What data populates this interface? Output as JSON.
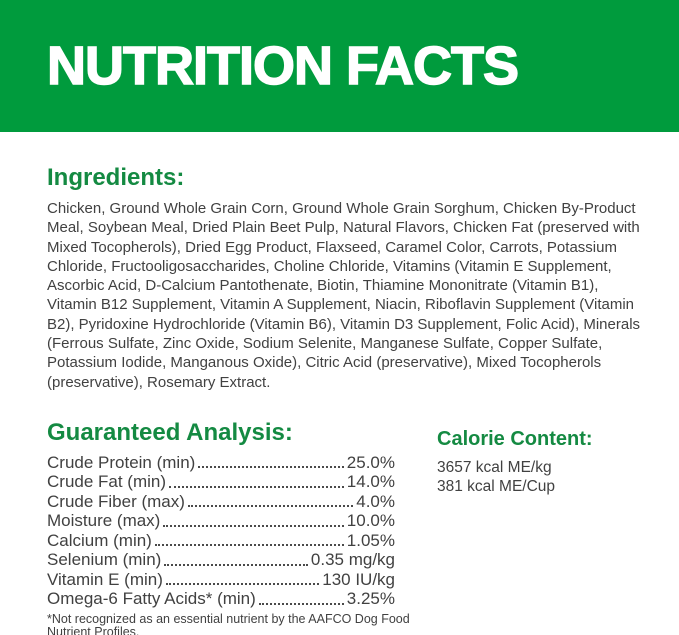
{
  "header": {
    "title": "NUTRITION FACTS"
  },
  "ingredients": {
    "heading": "Ingredients:",
    "text": "Chicken, Ground Whole Grain Corn, Ground Whole Grain Sorghum, Chicken By-Product Meal, Soybean Meal, Dried Plain Beet Pulp, Natural Flavors, Chicken Fat (preserved with Mixed Tocopherols), Dried Egg Product, Flaxseed, Caramel Color, Carrots, Potassium Chloride, Fructooligosaccharides, Choline Chloride, Vitamins (Vitamin E Supplement, Ascorbic Acid, D-Calcium Pantothenate, Biotin, Thiamine Mononitrate (Vitamin B1), Vitamin B12 Supplement, Vitamin A Supplement, Niacin, Riboflavin Supplement (Vitamin B2), Pyridoxine Hydrochloride (Vitamin B6), Vitamin D3 Supplement, Folic Acid), Minerals (Ferrous Sulfate, Zinc Oxide, Sodium Selenite, Manganese Sulfate, Copper Sulfate, Potassium Iodide, Manganous Oxide), Citric Acid (preservative), Mixed Tocopherols (preservative), Rosemary Extract."
  },
  "analysis": {
    "heading": "Guaranteed Analysis:",
    "rows": [
      {
        "label": "Crude Protein (min)",
        "value": "25.0%"
      },
      {
        "label": "Crude Fat (min)",
        "value": "14.0%"
      },
      {
        "label": "Crude Fiber (max)",
        "value": "4.0%"
      },
      {
        "label": "Moisture (max)",
        "value": "10.0%"
      },
      {
        "label": "Calcium (min)",
        "value": "1.05%"
      },
      {
        "label": "Selenium (min)",
        "value": "0.35 mg/kg"
      },
      {
        "label": "Vitamin E (min)",
        "value": "130 IU/kg"
      },
      {
        "label": "Omega-6 Fatty Acids* (min)",
        "value": "3.25%"
      }
    ],
    "footnote": "*Not recognized as an essential nutrient by the AAFCO Dog Food Nutrient Profiles."
  },
  "calories": {
    "heading": "Calorie Content:",
    "per_kg": "3657 kcal ME/kg",
    "per_cup": "381 kcal ME/Cup"
  },
  "colors": {
    "banner_green": "#009B3D",
    "heading_green": "#148A42",
    "text_gray": "#414141"
  }
}
